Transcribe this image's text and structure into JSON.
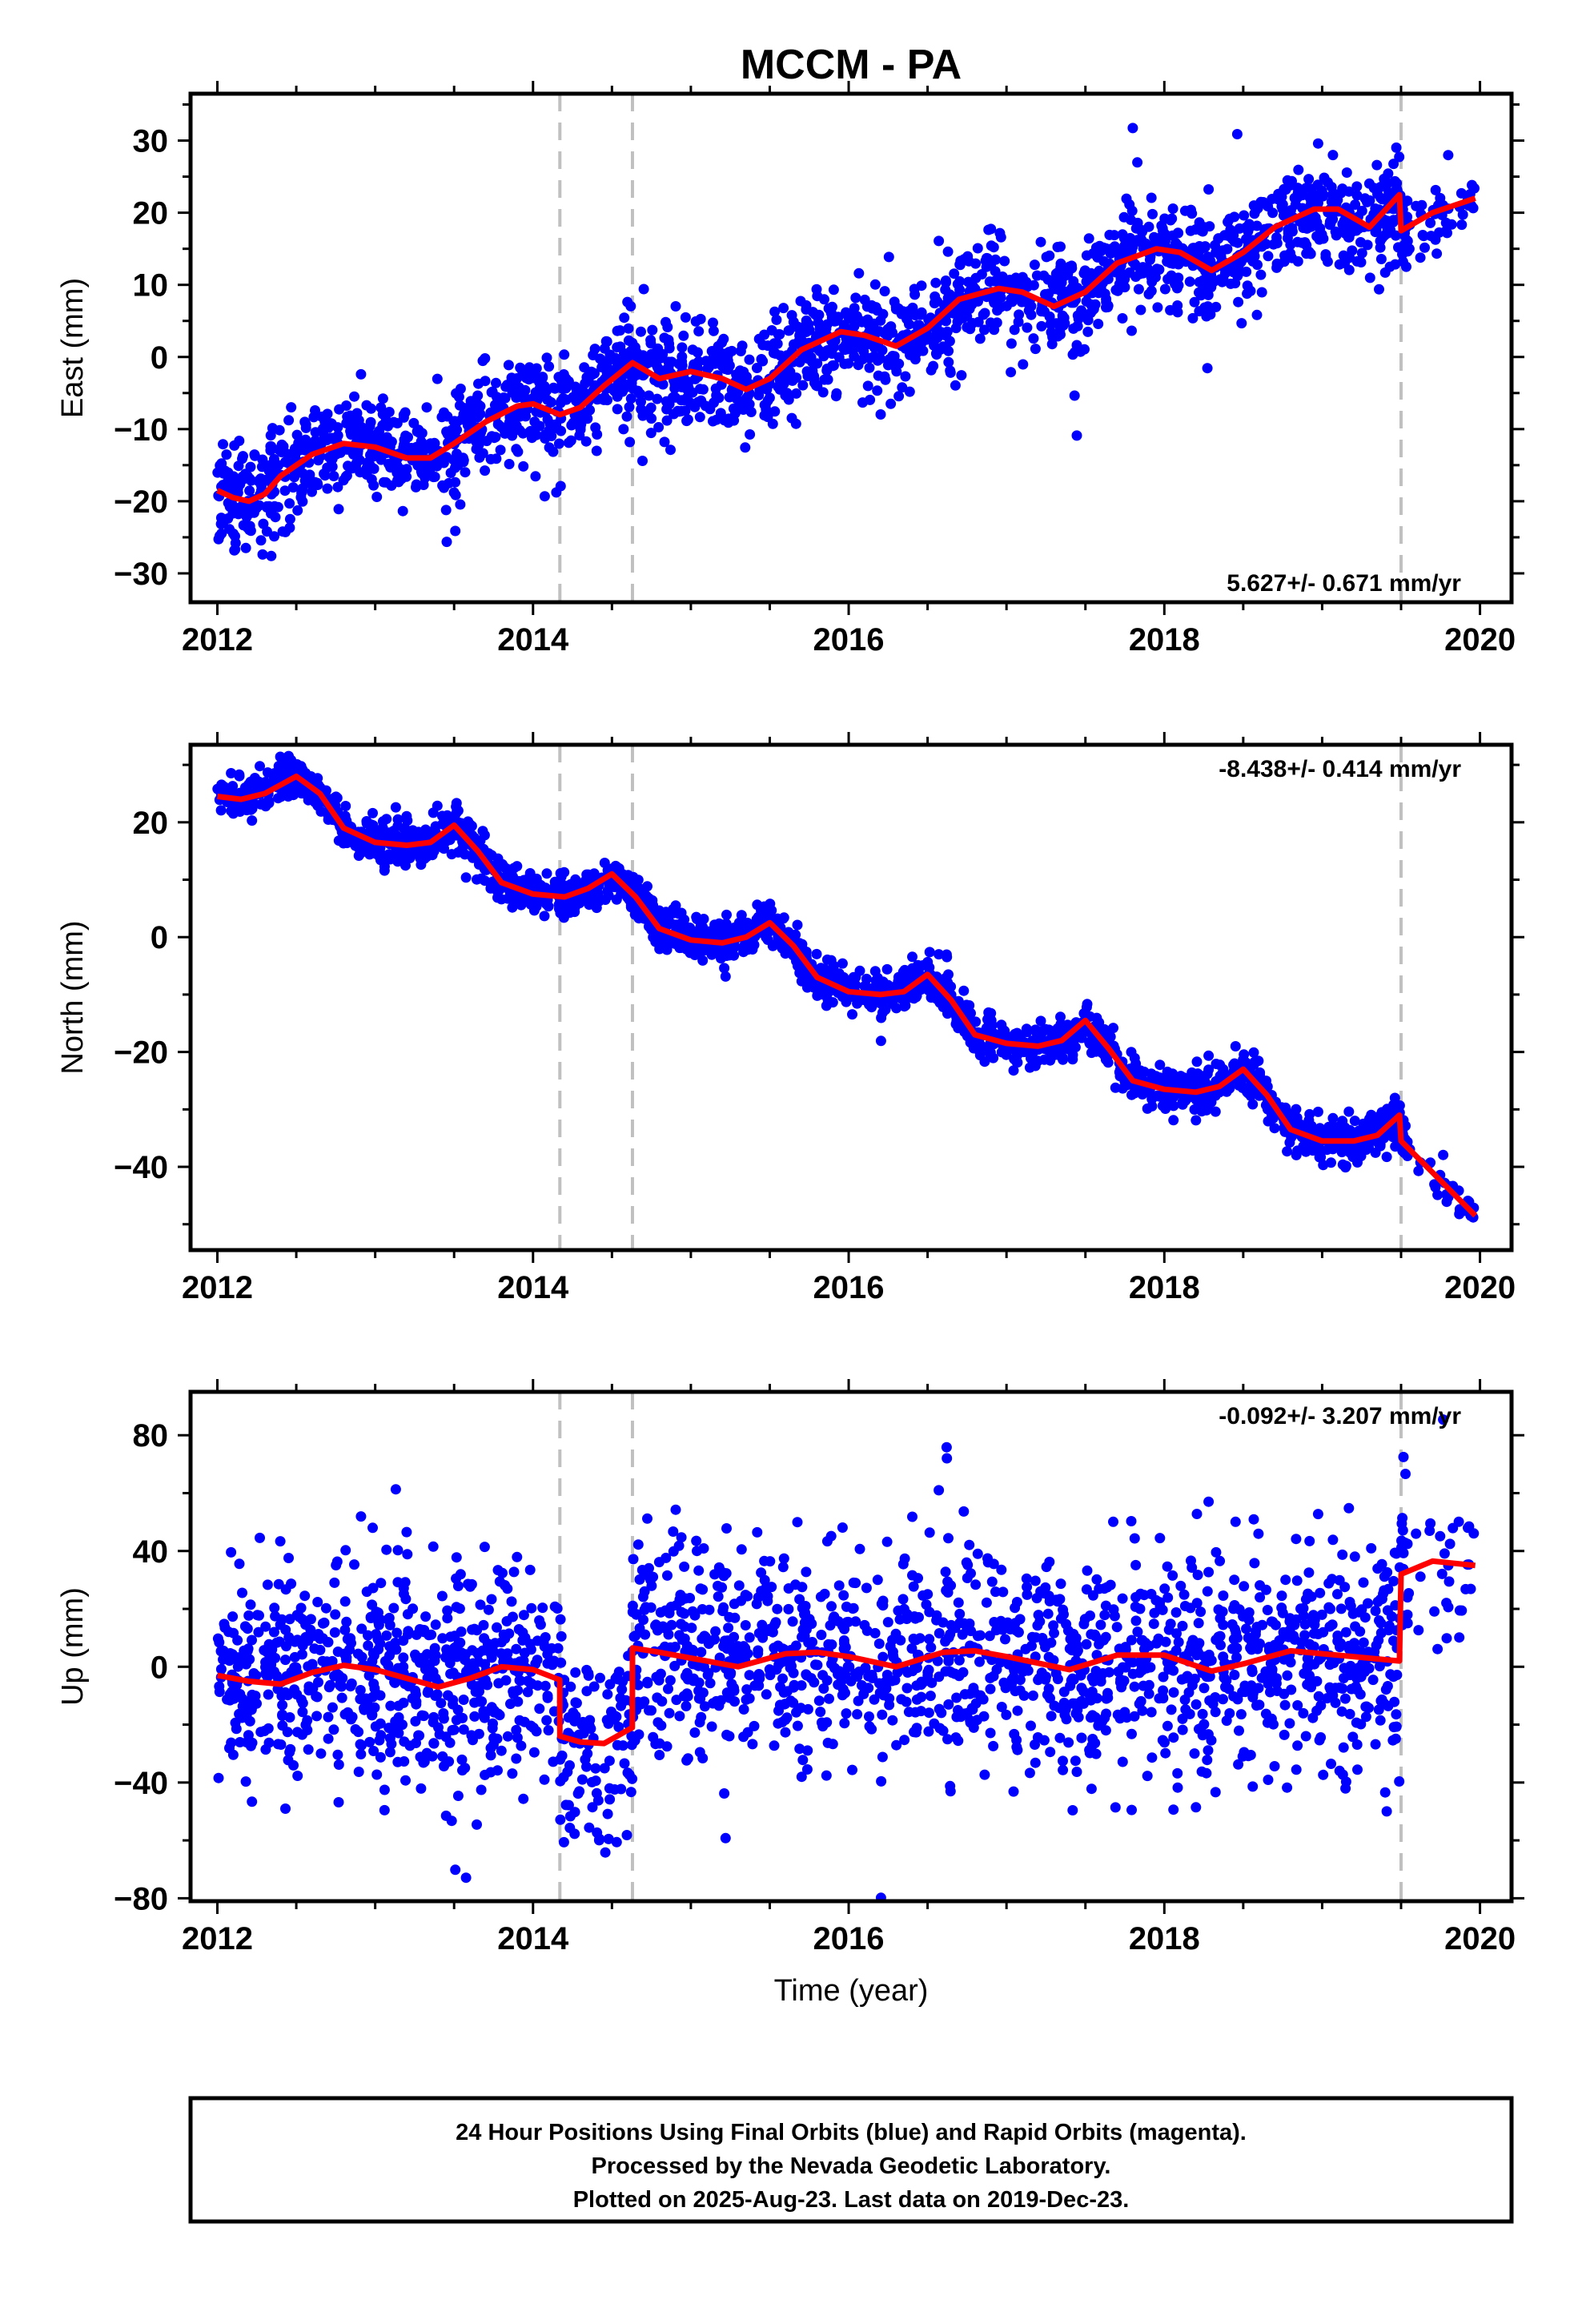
{
  "title": "MCCM - PA",
  "colors": {
    "data_points": "#0000ff",
    "model_line": "#ff0000",
    "event_lines": "#c0c0c0",
    "frame": "#000000"
  },
  "xlabel": "Time (year)",
  "footer": {
    "line1": "24 Hour Positions Using Final Orbits (blue) and Rapid Orbits (magenta).",
    "line2": "Processed by the Nevada Geodetic Laboratory.",
    "line3": "Plotted on 2025-Aug-23. Last data on 2019-Dec-23."
  },
  "chart_data": [
    {
      "type": "scatter",
      "ylabel": "East (mm)",
      "rate_label": "5.627+/- 0.671 mm/yr",
      "xlim": [
        2011.83,
        2020.2
      ],
      "ylim": [
        -34,
        36.5
      ],
      "xticks": [
        2012,
        2014,
        2016,
        2018,
        2020
      ],
      "yticks": [
        -30,
        -20,
        -10,
        0,
        10,
        20,
        30
      ],
      "event_lines_x": [
        2014.17,
        2014.63,
        2019.5
      ],
      "series": [
        {
          "kind": "points",
          "x_range": [
            2012.0,
            2019.97
          ],
          "scatter_mm": 3.4,
          "model_curve_x": [
            2012.0,
            2012.1,
            2012.2,
            2012.3,
            2012.4,
            2012.6,
            2012.8,
            2013.0,
            2013.2,
            2013.35,
            2013.5,
            2013.7,
            2013.9,
            2014.0,
            2014.17,
            2014.3,
            2014.45,
            2014.63,
            2014.8,
            2015.0,
            2015.2,
            2015.35,
            2015.5,
            2015.7,
            2015.95,
            2016.1,
            2016.3,
            2016.5,
            2016.7,
            2016.95,
            2017.1,
            2017.3,
            2017.5,
            2017.7,
            2017.95,
            2018.1,
            2018.3,
            2018.5,
            2018.7,
            2018.95,
            2019.1,
            2019.3,
            2019.49,
            2019.5,
            2019.7,
            2019.97
          ],
          "model_curve_y": [
            -18.5,
            -19.5,
            -20.0,
            -19.0,
            -16.5,
            -13.5,
            -12.0,
            -12.5,
            -14.0,
            -14.0,
            -12.0,
            -9.0,
            -6.8,
            -6.5,
            -8.0,
            -7.0,
            -4.0,
            -0.8,
            -3.0,
            -2.0,
            -3.0,
            -4.5,
            -3.0,
            1.0,
            3.5,
            3.0,
            1.5,
            4.0,
            8.0,
            9.5,
            9.0,
            7.0,
            9.0,
            13.0,
            15.0,
            14.5,
            12.0,
            14.5,
            18.0,
            20.5,
            20.5,
            18.0,
            22.5,
            17.5,
            20.0,
            22.0
          ]
        }
      ]
    },
    {
      "type": "scatter",
      "ylabel": "North (mm)",
      "rate_label": "-8.438+/- 0.414 mm/yr",
      "xlim": [
        2011.83,
        2020.2
      ],
      "ylim": [
        -54.5,
        33.5
      ],
      "xticks": [
        2012,
        2014,
        2016,
        2018,
        2020
      ],
      "yticks": [
        -40,
        -20,
        0,
        20
      ],
      "event_lines_x": [
        2014.17,
        2014.63,
        2019.5
      ],
      "series": [
        {
          "kind": "points",
          "x_range": [
            2012.0,
            2019.97
          ],
          "scatter_mm": 1.8,
          "model_curve_x": [
            2012.0,
            2012.15,
            2012.3,
            2012.5,
            2012.65,
            2012.8,
            2013.0,
            2013.2,
            2013.35,
            2013.5,
            2013.65,
            2013.8,
            2014.0,
            2014.2,
            2014.35,
            2014.5,
            2014.65,
            2014.8,
            2015.0,
            2015.2,
            2015.35,
            2015.5,
            2015.65,
            2015.8,
            2016.0,
            2016.2,
            2016.35,
            2016.5,
            2016.65,
            2016.8,
            2017.0,
            2017.2,
            2017.35,
            2017.5,
            2017.65,
            2017.8,
            2018.0,
            2018.2,
            2018.35,
            2018.5,
            2018.65,
            2018.8,
            2019.0,
            2019.2,
            2019.35,
            2019.49,
            2019.5,
            2019.7,
            2019.97
          ],
          "model_curve_y": [
            24.5,
            24.0,
            25.0,
            28.0,
            25.0,
            19.0,
            16.5,
            16.0,
            16.5,
            19.5,
            15.0,
            9.5,
            7.5,
            7.0,
            8.5,
            11.0,
            7.0,
            1.5,
            -0.5,
            -1.0,
            0.0,
            2.5,
            -1.5,
            -7.0,
            -9.5,
            -10.0,
            -9.5,
            -6.5,
            -11.0,
            -17.0,
            -18.5,
            -19.0,
            -18.0,
            -14.5,
            -19.5,
            -25.0,
            -26.5,
            -27.0,
            -26.0,
            -23.0,
            -27.5,
            -33.5,
            -35.5,
            -35.5,
            -34.5,
            -31.0,
            -35.5,
            -41.0,
            -48.5
          ]
        }
      ]
    },
    {
      "type": "scatter",
      "ylabel": "Up (mm)",
      "rate_label": "-0.092+/- 3.207 mm/yr",
      "xlim": [
        2011.83,
        2020.2
      ],
      "ylim": [
        -81,
        95
      ],
      "xticks": [
        2012,
        2014,
        2016,
        2018,
        2020
      ],
      "yticks": [
        -80,
        -40,
        0,
        40,
        80
      ],
      "event_lines_x": [
        2014.17,
        2014.63,
        2019.5
      ],
      "series": [
        {
          "kind": "points",
          "x_range": [
            2012.0,
            2019.97
          ],
          "scatter_mm": 18.0,
          "model_curve_x": [
            2012.0,
            2012.2,
            2012.4,
            2012.6,
            2012.8,
            2013.0,
            2013.2,
            2013.4,
            2013.6,
            2013.8,
            2014.0,
            2014.169,
            2014.17,
            2014.3,
            2014.45,
            2014.629,
            2014.63,
            2014.8,
            2015.0,
            2015.3,
            2015.6,
            2015.8,
            2016.0,
            2016.3,
            2016.6,
            2016.8,
            2017.0,
            2017.4,
            2017.7,
            2018.0,
            2018.3,
            2018.5,
            2018.8,
            2019.1,
            2019.49,
            2019.5,
            2019.7,
            2019.97
          ],
          "model_curve_y": [
            -3.0,
            -5.0,
            -6.0,
            -2.0,
            0.5,
            -1.0,
            -4.0,
            -7.0,
            -4.0,
            0.0,
            -1.0,
            -4.5,
            -24.0,
            -26.0,
            -26.5,
            -21.0,
            6.5,
            5.0,
            3.0,
            0.0,
            4.5,
            5.0,
            3.5,
            0.0,
            5.0,
            5.5,
            3.5,
            -1.0,
            4.0,
            4.0,
            -1.5,
            1.0,
            5.5,
            4.0,
            2.0,
            32.0,
            36.5,
            35.0
          ]
        }
      ]
    }
  ]
}
